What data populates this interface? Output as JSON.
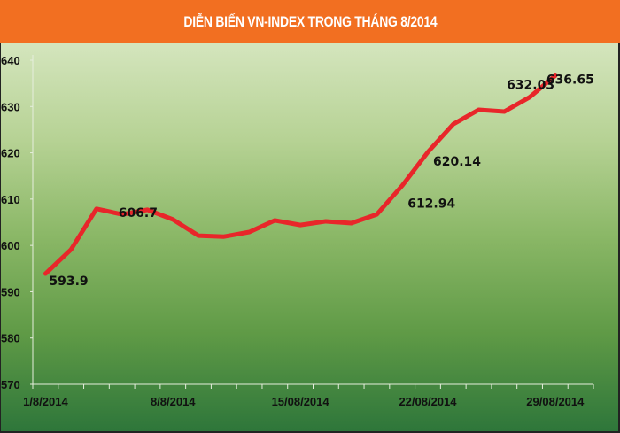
{
  "chart_data": {
    "type": "line",
    "title": "DIỄN BIẾN VN-INDEX TRONG THÁNG 8/2014",
    "xlabel": "",
    "ylabel": "",
    "ylim": [
      570,
      640
    ],
    "yticks": [
      570,
      580,
      590,
      600,
      610,
      620,
      630,
      640
    ],
    "x_tick_labels": [
      "1/8/2014",
      "8/8/2014",
      "15/08/2014",
      "22/08/2014",
      "29/08/2014"
    ],
    "x_tick_label_index": [
      0,
      5,
      10,
      15,
      20
    ],
    "values": [
      593.9,
      599.1,
      607.9,
      606.7,
      607.7,
      605.6,
      602.1,
      601.9,
      602.9,
      605.4,
      604.4,
      605.2,
      604.8,
      606.7,
      612.94,
      620.14,
      626.2,
      629.3,
      628.9,
      632.03,
      636.65
    ],
    "data_labels": [
      {
        "index": 0,
        "text": "593.9"
      },
      {
        "index": 3,
        "text": "606.7"
      },
      {
        "index": 14,
        "text": "612.94"
      },
      {
        "index": 15,
        "text": "620.14"
      },
      {
        "index": 19,
        "text": "632.03"
      },
      {
        "index": 20,
        "text": "636.65"
      }
    ],
    "grid": false,
    "legend": "none",
    "colors": {
      "line": "#e8262a",
      "header": "#f26f21",
      "title_text": "#ffffff"
    }
  }
}
